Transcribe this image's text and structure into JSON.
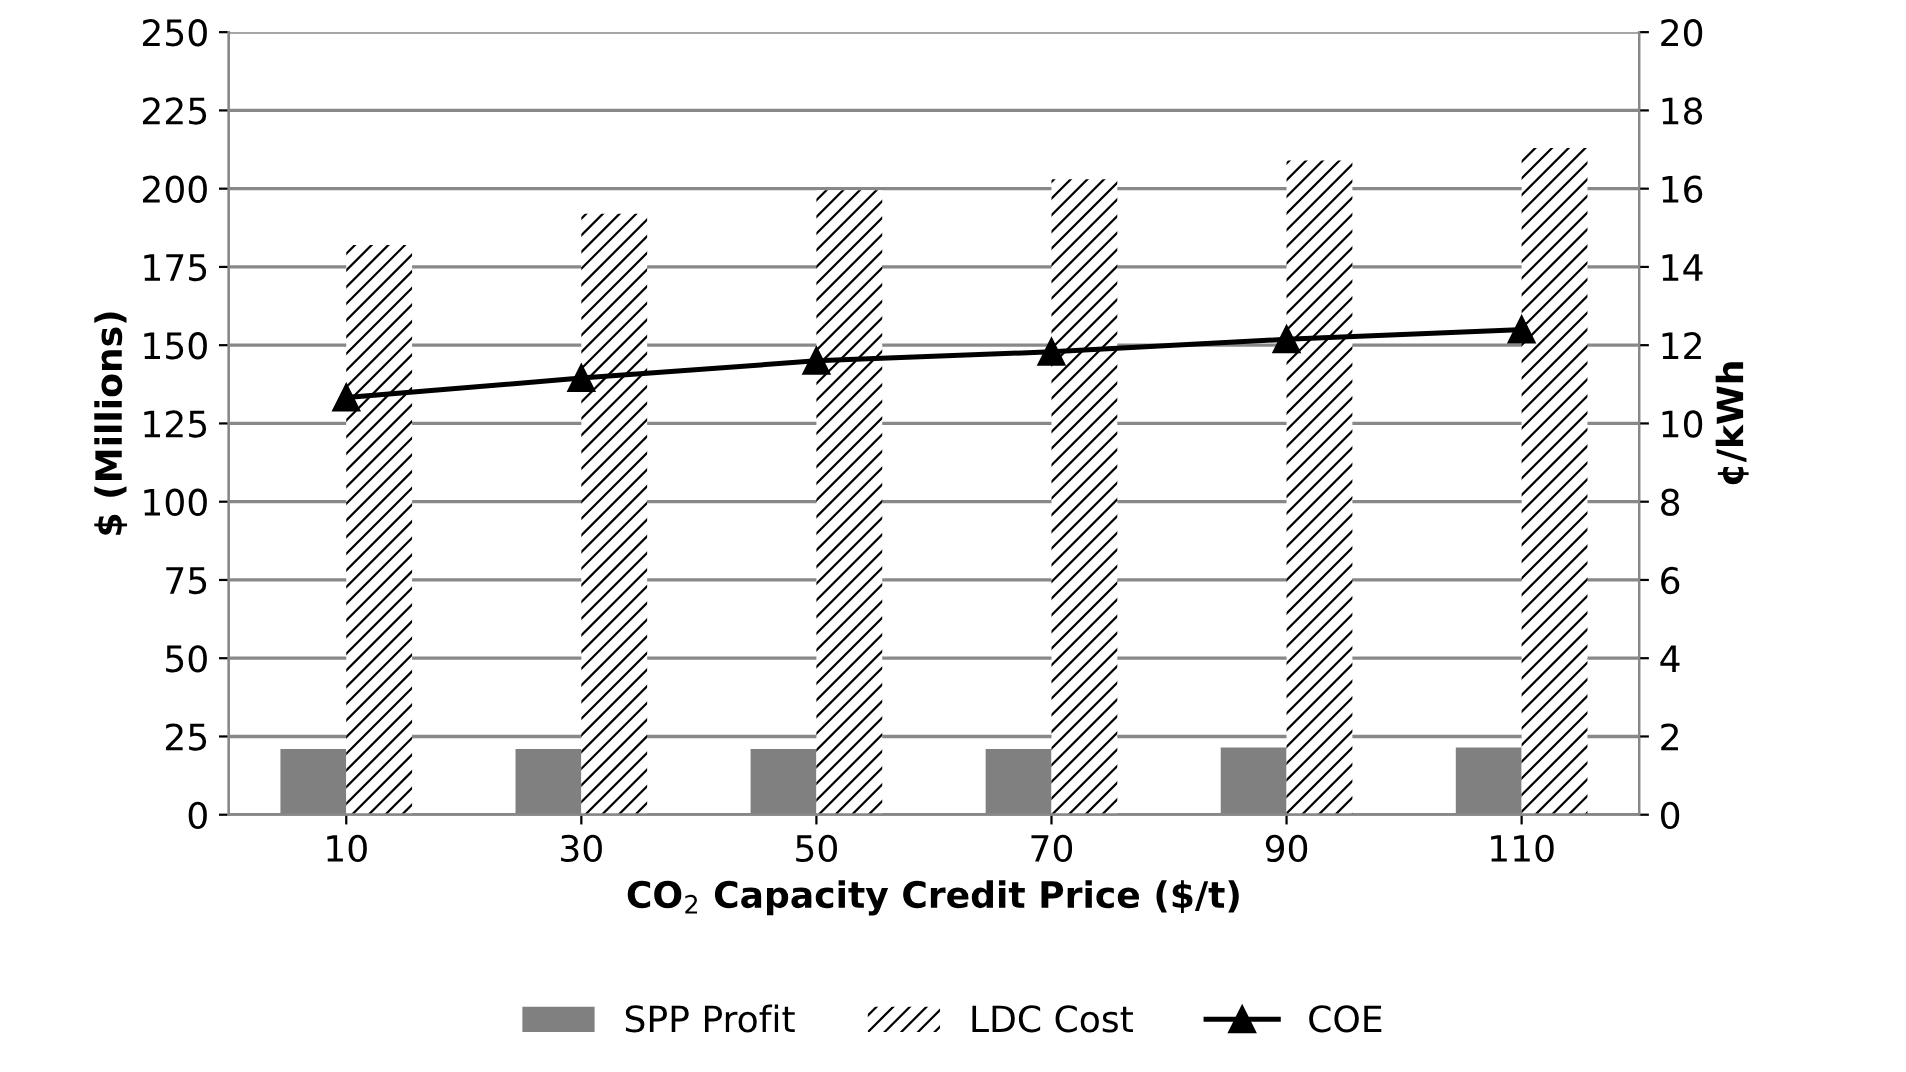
{
  "chart_data": {
    "type": "bar",
    "categories": [
      "10",
      "30",
      "50",
      "70",
      "90",
      "110"
    ],
    "xlabel": "CO$_{2}$ Capacity Credit Price ($/t)",
    "ylabel": "$ (Millions)",
    "y2label": "¢/kWh",
    "ylim": [
      0,
      250
    ],
    "yticks": [
      0,
      25,
      50,
      75,
      100,
      125,
      150,
      175,
      200,
      225,
      250
    ],
    "y2lim": [
      0,
      20
    ],
    "y2ticks": [
      0,
      2,
      4,
      6,
      8,
      10,
      12,
      14,
      16,
      18,
      20
    ],
    "grid": "y",
    "legend": "bottom",
    "marker": "triangle",
    "line_style": "solid",
    "series": [
      {
        "name": "SPP Profit",
        "color": "#808080",
        "values": [
          21,
          21,
          21,
          21,
          21.5,
          21.5
        ]
      },
      {
        "name": "LDC Cost",
        "color": "#000000",
        "values": [
          182,
          192,
          199.5,
          203,
          209,
          213
        ]
      },
      {
        "name": "COE",
        "type": "line",
        "axis": "y2",
        "color": "#000000",
        "values": [
          10.66,
          11.16,
          11.6,
          11.83,
          12.15,
          12.4
        ]
      }
    ]
  }
}
